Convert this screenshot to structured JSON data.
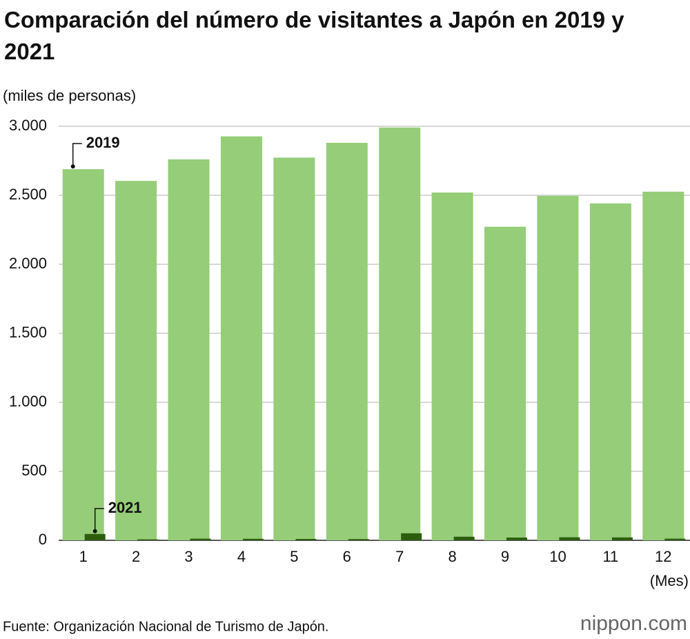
{
  "chart_data": {
    "type": "bar",
    "title": "Comparación del número de visitantes a Japón en 2019 y 2021",
    "y_label": "(miles de personas)",
    "x_label": "(Mes)",
    "source": "Fuente: Organización Nacional de Turismo de Japón.",
    "logo": "nippon.com",
    "categories": [
      "1",
      "2",
      "3",
      "4",
      "5",
      "6",
      "7",
      "8",
      "9",
      "10",
      "11",
      "12"
    ],
    "series": [
      {
        "name": "2019",
        "color": "#95cd78",
        "values": [
          2689,
          2604,
          2760,
          2927,
          2773,
          2880,
          2991,
          2520,
          2272,
          2496,
          2441,
          2526
        ]
      },
      {
        "name": "2021",
        "color": "#2d5e0f",
        "values": [
          46,
          7,
          12,
          11,
          10,
          9,
          51,
          26,
          20,
          22,
          21,
          12
        ]
      }
    ],
    "ylim": [
      0,
      3000
    ],
    "yticks": [
      0,
      500,
      {
        "value": 1000,
        "label": "1.000"
      },
      {
        "value": 1500,
        "label": "1.500"
      },
      {
        "value": 2000,
        "label": "2.000"
      },
      {
        "value": 2500,
        "label": "2.500"
      },
      {
        "value": 3000,
        "label": "3.000"
      }
    ],
    "grid": true
  }
}
